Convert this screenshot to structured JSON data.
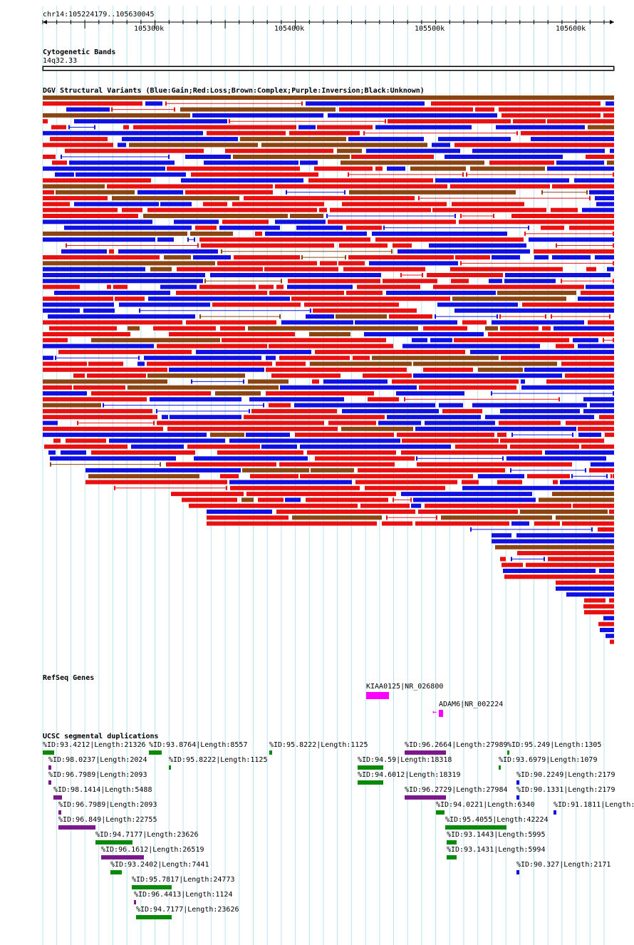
{
  "header": {
    "location": "chr14:105224179..105630045",
    "ticks": [
      "105300k",
      "105400k",
      "105500k",
      "105600k"
    ]
  },
  "cytoband": {
    "title": "Cytogenetic Bands",
    "band": "14q32.33"
  },
  "dgv": {
    "title": "DGV Structural Variants (Blue:Gain;Red:Loss;Brown:Complex;Purple:Inversion;Black:Unknown)",
    "colors": {
      "gain": "#1010e0",
      "loss": "#e81010",
      "complex": "#8b4513",
      "inversion": "#5a1a9a",
      "unknown": "#000000"
    }
  },
  "refseq": {
    "title": "RefSeq Genes",
    "genes": [
      {
        "label": "KIAA0125|NR_026800",
        "color": "#ff00ff"
      },
      {
        "label": "ADAM6|NR_002224",
        "color": "#ff00ff"
      }
    ]
  },
  "segdups": {
    "title": "UCSC segmental duplications",
    "items": [
      {
        "label": "%ID:93.4212|Length:21326",
        "color": "green"
      },
      {
        "label": "%ID:93.8764|Length:8557",
        "color": "green"
      },
      {
        "label": "%ID:95.8222|Length:1125",
        "color": "green"
      },
      {
        "label": "%ID:96.2664|Length:27989",
        "color": "purple"
      },
      {
        "label": "%ID:95.249|Length:1305",
        "color": "green"
      },
      {
        "label": "%ID:98.0237|Length:2024",
        "color": "purple"
      },
      {
        "label": "%ID:95.8222|Length:1125",
        "color": "green"
      },
      {
        "label": "%ID:94.59|Length:18318",
        "color": "green"
      },
      {
        "label": "%ID:93.6979|Length:1079",
        "color": "green"
      },
      {
        "label": "%ID:96.7989|Length:2093",
        "color": "purple"
      },
      {
        "label": "%ID:94.6012|Length:18319",
        "color": "green"
      },
      {
        "label": "%ID:90.2249|Length:2179",
        "color": "blue"
      },
      {
        "label": "%ID:98.1414|Length:5488",
        "color": "purple"
      },
      {
        "label": "%ID:96.2729|Length:27984",
        "color": "purple"
      },
      {
        "label": "%ID:90.1331|Length:2179",
        "color": "blue"
      },
      {
        "label": "%ID:96.7989|Length:2093",
        "color": "purple"
      },
      {
        "label": "%ID:94.0221|Length:6340",
        "color": "green"
      },
      {
        "label": "%ID:91.1811|Length:",
        "color": "blue"
      },
      {
        "label": "%ID:96.849|Length:22755",
        "color": "purple"
      },
      {
        "label": "%ID:95.4055|Length:42224",
        "color": "green"
      },
      {
        "label": "%ID:94.7177|Length:23626",
        "color": "green"
      },
      {
        "label": "%ID:93.1443|Length:5995",
        "color": "green"
      },
      {
        "label": "%ID:96.1612|Length:26519",
        "color": "purple"
      },
      {
        "label": "%ID:93.1431|Length:5994",
        "color": "green"
      },
      {
        "label": "%ID:93.2402|Length:7441",
        "color": "green"
      },
      {
        "label": "%ID:90.327|Length:2171",
        "color": "blue"
      },
      {
        "label": "%ID:95.7817|Length:24773",
        "color": "green"
      },
      {
        "label": "%ID:96.4413|Length:1124",
        "color": "purple"
      },
      {
        "label": "%ID:94.7177|Length:23626",
        "color": "green"
      }
    ]
  }
}
